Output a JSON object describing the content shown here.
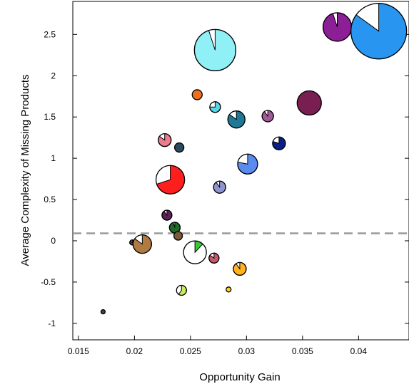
{
  "chart_data": {
    "type": "scatter",
    "subtype": "pie-markers",
    "title": "",
    "xlabel": "Opportunity Gain",
    "ylabel": "Average Complexity of Missing Products",
    "xlim": [
      0.0145,
      0.0445
    ],
    "ylim": [
      -1.2,
      2.9
    ],
    "xticks": [
      0.015,
      0.02,
      0.025,
      0.03,
      0.035,
      0.04
    ],
    "xtick_labels": [
      "0.015",
      "0.02",
      "0.025",
      "0.03",
      "0.035",
      "0.04"
    ],
    "yticks": [
      -1,
      -0.5,
      0,
      0.5,
      1,
      1.5,
      2,
      2.5
    ],
    "ytick_labels": [
      "-1",
      "-0.5",
      "0",
      "0.5",
      "1",
      "1.5",
      "2",
      "2.5"
    ],
    "grid": false,
    "reference_line": {
      "y": 0.09,
      "style": "dashed",
      "color": "#999999"
    },
    "points": [
      {
        "x": 0.0172,
        "y": -0.86,
        "size": 3,
        "fill": 1.0,
        "color": "#444444"
      },
      {
        "x": 0.0198,
        "y": -0.02,
        "size": 3.5,
        "fill": 0.85,
        "color": "#5b3b3b"
      },
      {
        "x": 0.0207,
        "y": -0.04,
        "size": 13,
        "fill": 0.85,
        "color": "#b07a42"
      },
      {
        "x": 0.0227,
        "y": 1.22,
        "size": 9,
        "fill": 0.85,
        "color": "#ea7c8c"
      },
      {
        "x": 0.0229,
        "y": 0.31,
        "size": 7,
        "fill": 0.9,
        "color": "#5e1f5a"
      },
      {
        "x": 0.0232,
        "y": 0.74,
        "size": 20,
        "fill": 0.7,
        "color": "#ff1e1e"
      },
      {
        "x": 0.0236,
        "y": 0.16,
        "size": 7.5,
        "fill": 0.95,
        "color": "#1d6b25"
      },
      {
        "x": 0.0239,
        "y": 0.06,
        "size": 6,
        "fill": 1.0,
        "color": "#7a5a3a"
      },
      {
        "x": 0.024,
        "y": 1.13,
        "size": 6.5,
        "fill": 1.0,
        "color": "#2a4a5e"
      },
      {
        "x": 0.0242,
        "y": -0.6,
        "size": 7,
        "fill": 0.6,
        "color": "#c6ee5a"
      },
      {
        "x": 0.0254,
        "y": -0.14,
        "size": 16,
        "fill": 0.12,
        "color": "#33cc33"
      },
      {
        "x": 0.0256,
        "y": 1.77,
        "size": 7,
        "fill": 1.0,
        "color": "#ee6f1e"
      },
      {
        "x": 0.0272,
        "y": 2.31,
        "size": 29,
        "fill": 0.95,
        "color": "#8ff0f5"
      },
      {
        "x": 0.0272,
        "y": 1.62,
        "size": 7.5,
        "fill": 0.75,
        "color": "#55d6e6"
      },
      {
        "x": 0.0271,
        "y": -0.21,
        "size": 7,
        "fill": 0.85,
        "color": "#c5596e"
      },
      {
        "x": 0.0276,
        "y": 0.65,
        "size": 8.5,
        "fill": 0.9,
        "color": "#8e96d2"
      },
      {
        "x": 0.0284,
        "y": -0.59,
        "size": 3.5,
        "fill": 1.0,
        "color": "#ffd21e"
      },
      {
        "x": 0.0291,
        "y": 1.47,
        "size": 12,
        "fill": 0.85,
        "color": "#1e7896"
      },
      {
        "x": 0.0294,
        "y": -0.34,
        "size": 9,
        "fill": 0.9,
        "color": "#ffb41e"
      },
      {
        "x": 0.0301,
        "y": 0.93,
        "size": 14,
        "fill": 0.78,
        "color": "#5a8cf0"
      },
      {
        "x": 0.0319,
        "y": 1.51,
        "size": 8,
        "fill": 0.9,
        "color": "#a05a96"
      },
      {
        "x": 0.0329,
        "y": 1.18,
        "size": 9,
        "fill": 0.8,
        "color": "#0a1e87"
      },
      {
        "x": 0.0356,
        "y": 1.67,
        "size": 17,
        "fill": 1.0,
        "color": "#781e50"
      },
      {
        "x": 0.0381,
        "y": 2.59,
        "size": 20,
        "fill": 0.95,
        "color": "#8c1e96"
      },
      {
        "x": 0.0418,
        "y": 2.54,
        "size": 39,
        "fill": 0.85,
        "color": "#2896f0"
      }
    ]
  }
}
